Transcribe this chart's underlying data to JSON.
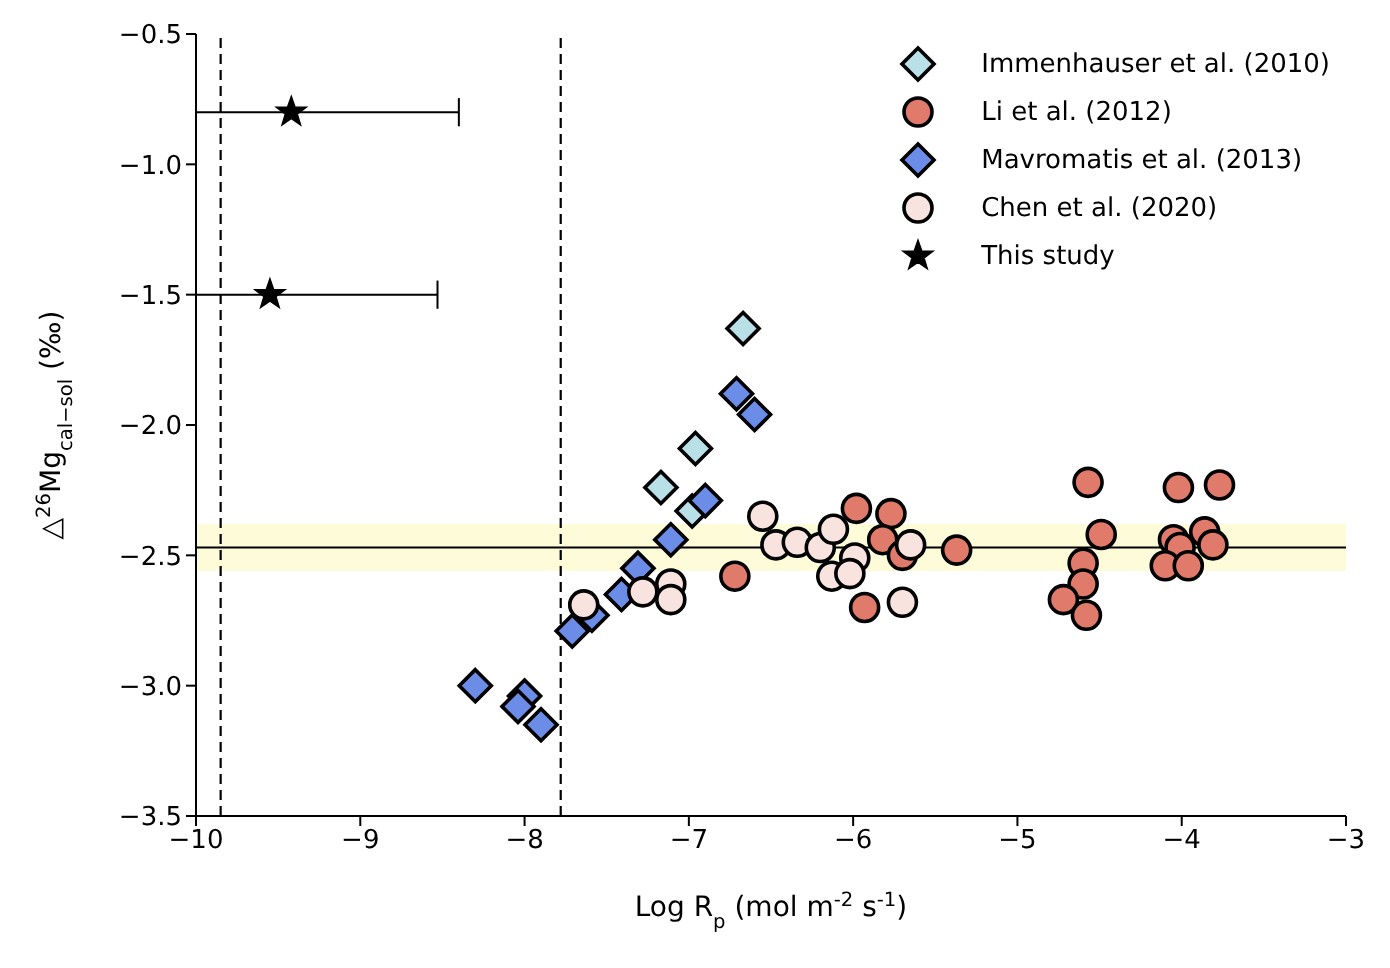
{
  "chart_data": {
    "type": "scatter",
    "xlabel": "Log R$_{p}$ (mol m$^{-2}$ s$^{-1}$)",
    "ylabel": "△$^{26}$Mg$_{cal−sol}$ (‰)",
    "xlim": [
      -10,
      -3
    ],
    "ylim": [
      -3.5,
      -0.5
    ],
    "xticks": [
      {
        "value": -10,
        "label": "−10"
      },
      {
        "value": -9,
        "label": "−9"
      },
      {
        "value": -8,
        "label": "−8"
      },
      {
        "value": -7,
        "label": "−7"
      },
      {
        "value": -6,
        "label": "−6"
      },
      {
        "value": -5,
        "label": "−5"
      },
      {
        "value": -4,
        "label": "−4"
      },
      {
        "value": -3,
        "label": "−3"
      }
    ],
    "yticks": [
      {
        "value": -3.5,
        "label": "−3.5"
      },
      {
        "value": -3,
        "label": "−3.0"
      },
      {
        "value": -2.5,
        "label": "−2.5"
      },
      {
        "value": -2,
        "label": "−2.0"
      },
      {
        "value": -1.5,
        "label": "−1.5"
      },
      {
        "value": -1,
        "label": "−1.0"
      },
      {
        "value": -0.5,
        "label": "−0.5"
      }
    ],
    "legend": "top right",
    "grid": false,
    "series": [
      {
        "name": "Immenhauser et al. (2010)",
        "color": "#b9e0e6",
        "marker": "diamond",
        "x": [
          -6.67,
          -6.96,
          -7.17,
          -6.98
        ],
        "values": [
          -1.63,
          -2.09,
          -2.24,
          -2.33
        ]
      },
      {
        "name": "Li et al. (2012)",
        "color": "#e07a6a",
        "marker": "circle",
        "x": [
          -6.72,
          -5.98,
          -5.77,
          -5.82,
          -5.7,
          -5.93,
          -5.37,
          -4.57,
          -4.49,
          -4.6,
          -4.6,
          -4.72,
          -4.58,
          -4.02,
          -3.77,
          -4.05,
          -4.01,
          -3.86,
          -3.81,
          -4.1,
          -3.96
        ],
        "values": [
          -2.58,
          -2.32,
          -2.34,
          -2.44,
          -2.5,
          -2.7,
          -2.48,
          -2.22,
          -2.42,
          -2.53,
          -2.61,
          -2.67,
          -2.73,
          -2.24,
          -2.23,
          -2.44,
          -2.47,
          -2.41,
          -2.46,
          -2.54,
          -2.54
        ]
      },
      {
        "name": "Mavromatis et al. (2013)",
        "color": "#6b8de8",
        "marker": "diamond",
        "x": [
          -8.3,
          -8.0,
          -8.04,
          -7.9,
          -7.71,
          -7.59,
          -7.41,
          -7.31,
          -7.11,
          -6.9,
          -6.71,
          -6.6
        ],
        "values": [
          -3.0,
          -3.04,
          -3.08,
          -3.15,
          -2.79,
          -2.73,
          -2.65,
          -2.55,
          -2.44,
          -2.29,
          -1.88,
          -1.96
        ]
      },
      {
        "name": "Chen et al. (2020)",
        "color": "#f9e3df",
        "marker": "circle",
        "x": [
          -7.64,
          -7.28,
          -7.11,
          -7.11,
          -6.55,
          -6.47,
          -6.34,
          -6.2,
          -6.12,
          -5.99,
          -6.13,
          -6.02,
          -5.65,
          -5.7
        ],
        "values": [
          -2.69,
          -2.64,
          -2.61,
          -2.67,
          -2.35,
          -2.46,
          -2.45,
          -2.47,
          -2.4,
          -2.51,
          -2.58,
          -2.57,
          -2.46,
          -2.68
        ]
      },
      {
        "name": "This study",
        "color": "#000000",
        "marker": "star",
        "x": [
          -9.42,
          -9.55
        ],
        "values": [
          -0.8,
          -1.5
        ],
        "xerrors": [
          [
            -10,
            -8.4
          ],
          [
            -10,
            -8.53
          ]
        ]
      }
    ],
    "ref_lines": [
      {
        "axis": "x",
        "value": -9.85,
        "line_style": "dashed",
        "color": "#000000"
      },
      {
        "axis": "x",
        "value": -7.78,
        "line_style": "dashed",
        "color": "#000000"
      },
      {
        "axis": "y",
        "value": -2.47,
        "line_style": "solid",
        "color": "#000000"
      }
    ],
    "bands": [
      {
        "axis": "y",
        "from": -2.56,
        "to": -2.38,
        "color": "#fdfbd8"
      }
    ]
  }
}
